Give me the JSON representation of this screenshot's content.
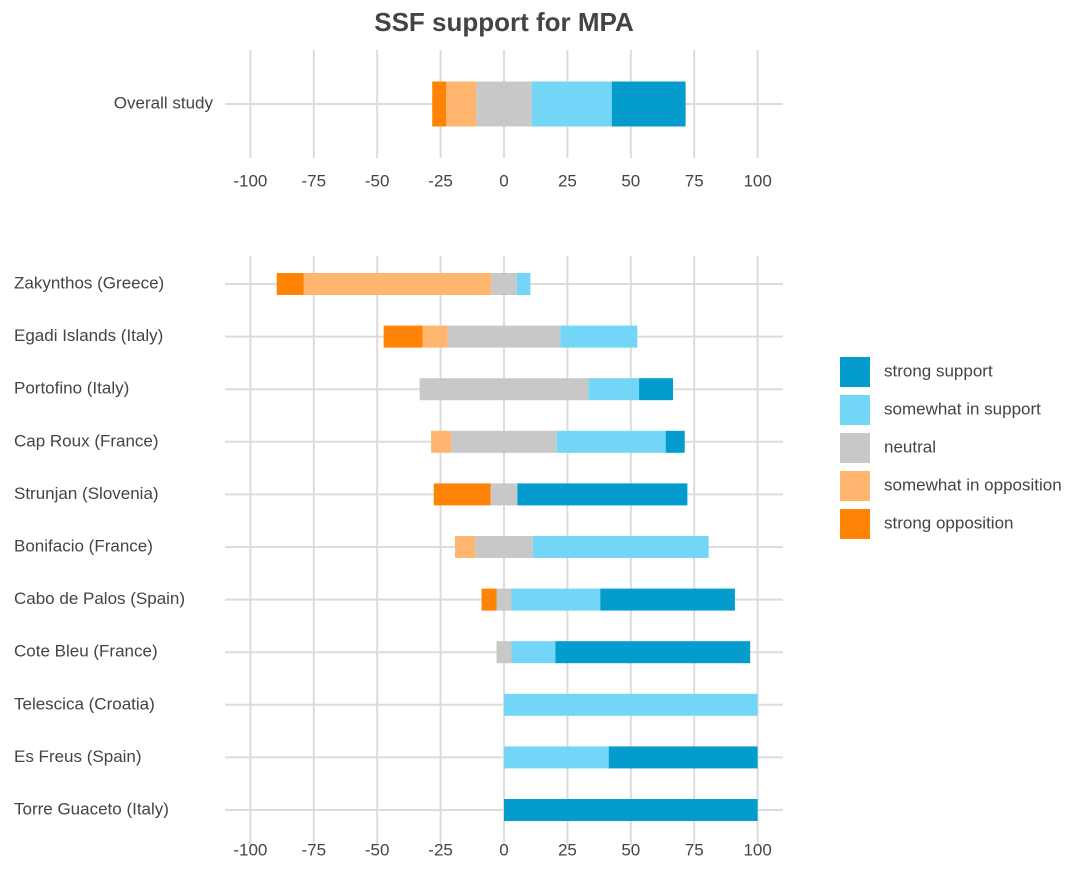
{
  "chart_data": [
    {
      "type": "diverging-bar",
      "title": "SSF support for MPA",
      "categories": [
        "Overall study"
      ],
      "series": [
        {
          "values": [
            29.1
          ]
        },
        {
          "values": [
            31.5
          ]
        },
        {
          "values": [
            22
          ]
        },
        {
          "values": [
            11.8
          ]
        },
        {
          "values": [
            5.5
          ]
        }
      ],
      "xlim": [
        -110,
        110
      ],
      "xticks": [
        -100,
        -75,
        -50,
        -25,
        0,
        25,
        50,
        75,
        100
      ],
      "grid": true
    },
    {
      "type": "diverging-bar",
      "categories": [
        "Zakynthos (Greece)",
        "Egadi Islands (Italy)",
        "Portofino (Italy)",
        "Cap Roux (France)",
        "Strunjan (Slovenia)",
        "Bonifacio (France)",
        "Cabo de Palos (Spain)",
        "Cote Bleu (France)",
        "Telescica (Croatia)",
        "Es Freus (Spain)",
        "Torre Guaceto (Italy)"
      ],
      "series": [
        {
          "name": "strong support",
          "color": "#049ccd",
          "side": "positive",
          "values": [
            0,
            0,
            13.4,
            7.5,
            67,
            0,
            53.1,
            76.8,
            0,
            58.7,
            100
          ]
        },
        {
          "name": "somewhat in support",
          "color": "#73d6f6",
          "side": "positive",
          "values": [
            5.4,
            30.3,
            20,
            42.9,
            0,
            69.3,
            35,
            17.3,
            100,
            41.3,
            0
          ]
        },
        {
          "name": "neutral",
          "color": "#c8c8c8",
          "side": "center",
          "values": [
            10,
            44.5,
            66.5,
            41.7,
            10.6,
            22.8,
            5.9,
            5.9,
            0,
            0,
            0
          ]
        },
        {
          "name": "somewhat in opposition",
          "color": "#feb66f",
          "side": "negative",
          "values": [
            74,
            9.8,
            0,
            7.9,
            0,
            7.9,
            0,
            0,
            0,
            0,
            0
          ]
        },
        {
          "name": "strong opposition",
          "color": "#ff8405",
          "side": "negative",
          "values": [
            10.6,
            15.4,
            0,
            0,
            22.4,
            0,
            5.9,
            0,
            0,
            0,
            0
          ]
        }
      ],
      "xlim": [
        -110,
        110
      ],
      "xticks": [
        -100,
        -75,
        -50,
        -25,
        0,
        25,
        50,
        75,
        100
      ],
      "grid": true,
      "legend": "right"
    }
  ]
}
